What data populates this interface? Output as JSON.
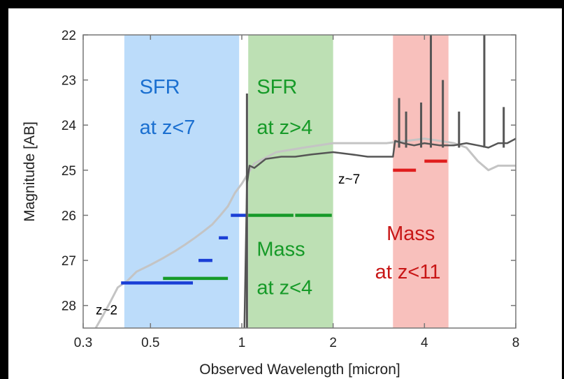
{
  "chart_data": {
    "type": "line",
    "title": "",
    "xlabel": "Observed Wavelength [micron]",
    "ylabel": "Magnitude [AB]",
    "x_scale": "log",
    "xlim": [
      0.3,
      8
    ],
    "ylim": [
      28.5,
      22
    ],
    "x_ticks": [
      0.3,
      0.5,
      1,
      2,
      4,
      8
    ],
    "y_ticks": [
      22,
      23,
      24,
      25,
      26,
      27,
      28
    ],
    "grid": false,
    "legend": "none",
    "bands": [
      {
        "x0": 0.41,
        "x1": 0.98,
        "color": "#bcdcfa"
      },
      {
        "x0": 1.05,
        "x1": 2.0,
        "color": "#bde0b4"
      },
      {
        "x0": 3.15,
        "x1": 4.8,
        "color": "#f8c0bc"
      }
    ],
    "annotations": [
      {
        "text": "SFR",
        "x": 0.46,
        "y": 23.3,
        "color": "#1a6fd0",
        "size": 29
      },
      {
        "text": "at z<7",
        "x": 0.46,
        "y": 24.2,
        "color": "#1a6fd0",
        "size": 29
      },
      {
        "text": "SFR",
        "x": 1.12,
        "y": 23.3,
        "color": "#169a28",
        "size": 29
      },
      {
        "text": "at z>4",
        "x": 1.12,
        "y": 24.2,
        "color": "#169a28",
        "size": 29
      },
      {
        "text": "Mass",
        "x": 1.12,
        "y": 26.9,
        "color": "#169a28",
        "size": 29
      },
      {
        "text": "at z<4",
        "x": 1.12,
        "y": 27.75,
        "color": "#169a28",
        "size": 29
      },
      {
        "text": "Mass",
        "x": 3.0,
        "y": 26.55,
        "color": "#c81616",
        "size": 29
      },
      {
        "text": "at z<11",
        "x": 2.75,
        "y": 27.4,
        "color": "#c81616",
        "size": 29
      },
      {
        "text": "z~2",
        "x": 0.33,
        "y": 28.2,
        "color": "#000000",
        "size": 19
      },
      {
        "text": "z~7",
        "x": 2.08,
        "y": 25.3,
        "color": "#000000",
        "size": 19
      }
    ],
    "limits": [
      {
        "x0": 0.4,
        "x1": 0.69,
        "y": 27.5,
        "color": "#1a3fd6"
      },
      {
        "x0": 0.72,
        "x1": 0.8,
        "y": 27.0,
        "color": "#1a3fd6"
      },
      {
        "x0": 0.84,
        "x1": 0.9,
        "y": 26.5,
        "color": "#1a3fd6"
      },
      {
        "x0": 0.92,
        "x1": 1.03,
        "y": 26.0,
        "color": "#1a3fd6"
      },
      {
        "x0": 0.55,
        "x1": 0.9,
        "y": 27.4,
        "color": "#169a28"
      },
      {
        "x0": 1.05,
        "x1": 1.48,
        "y": 26.0,
        "color": "#169a28"
      },
      {
        "x0": 1.5,
        "x1": 1.98,
        "y": 26.0,
        "color": "#169a28"
      },
      {
        "x0": 3.15,
        "x1": 3.75,
        "y": 25.0,
        "color": "#e01e1e"
      },
      {
        "x0": 4.0,
        "x1": 4.75,
        "y": 24.8,
        "color": "#e01e1e"
      }
    ],
    "series": [
      {
        "color": "#c4c4c4",
        "width": 3,
        "x": [
          0.33,
          0.35,
          0.37,
          0.39,
          0.42,
          0.45,
          0.5,
          0.55,
          0.6,
          0.65,
          0.7,
          0.75,
          0.8,
          0.85,
          0.9,
          0.95,
          1.0,
          1.1,
          1.3,
          1.6,
          2.0,
          2.5,
          3.0,
          3.5,
          4.0,
          4.5,
          5.0,
          5.5,
          6.0,
          6.5,
          7.0,
          8.0
        ],
        "y": [
          28.5,
          28.2,
          27.9,
          27.6,
          27.45,
          27.25,
          27.1,
          26.95,
          26.8,
          26.65,
          26.5,
          26.35,
          26.2,
          26.0,
          25.8,
          25.5,
          25.3,
          24.85,
          24.6,
          24.5,
          24.4,
          24.4,
          24.4,
          24.35,
          24.3,
          24.35,
          24.4,
          24.5,
          24.8,
          25.0,
          24.9,
          24.9
        ]
      },
      {
        "color": "#555555",
        "width": 2.5,
        "x": [
          1.02,
          1.04,
          1.06,
          1.1,
          1.2,
          1.35,
          1.5,
          1.7,
          2.0,
          2.3,
          2.6,
          2.9,
          3.15,
          3.2,
          3.4,
          3.7,
          4.0,
          4.5,
          5.0,
          5.5,
          6.0,
          6.5,
          7.0,
          7.5,
          8.0
        ],
        "y": [
          28.5,
          25.3,
          24.9,
          24.95,
          24.75,
          24.7,
          24.7,
          24.65,
          24.6,
          24.65,
          24.7,
          24.7,
          24.7,
          24.35,
          24.4,
          24.45,
          24.4,
          24.45,
          24.45,
          24.4,
          24.45,
          24.5,
          24.4,
          24.4,
          24.3
        ]
      }
    ],
    "emission_lines": [
      {
        "x": 1.04,
        "y0": 28.5,
        "y1": 23.3
      },
      {
        "x": 3.3,
        "y0": 24.5,
        "y1": 23.4
      },
      {
        "x": 3.48,
        "y0": 24.5,
        "y1": 23.7
      },
      {
        "x": 3.9,
        "y0": 24.5,
        "y1": 23.5
      },
      {
        "x": 4.2,
        "y0": 24.5,
        "y1": 22.0
      },
      {
        "x": 4.6,
        "y0": 24.5,
        "y1": 23.0
      },
      {
        "x": 5.2,
        "y0": 24.5,
        "y1": 23.7
      },
      {
        "x": 6.3,
        "y0": 24.5,
        "y1": 22.0
      },
      {
        "x": 7.3,
        "y0": 24.5,
        "y1": 23.6
      }
    ]
  }
}
